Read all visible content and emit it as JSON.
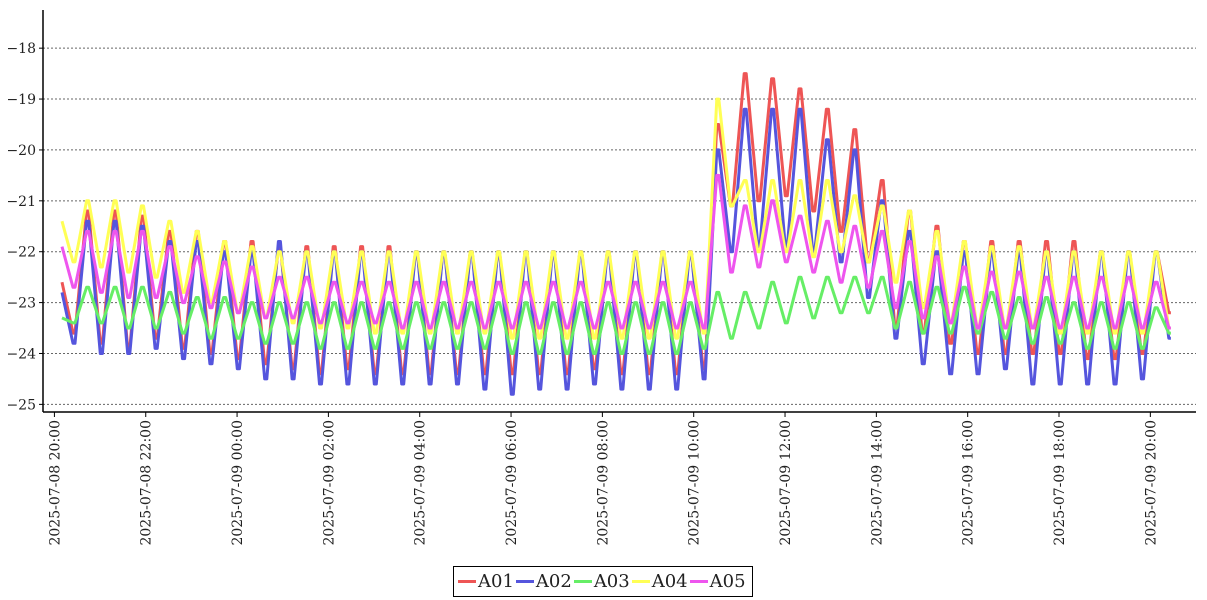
{
  "chart_data": {
    "type": "line",
    "title": "",
    "xlabel": "",
    "ylabel": "",
    "x_range": [
      "2025-07-08 19:45",
      "2025-07-09 21:00"
    ],
    "ylim": [
      -25.15,
      -17.25
    ],
    "y_ticks": [
      -18,
      -19,
      -20,
      -21,
      -22,
      -23,
      -24,
      -25
    ],
    "y_tick_labels": [
      "−18",
      "−19",
      "−20",
      "−21",
      "−22",
      "−23",
      "−24",
      "−25"
    ],
    "x_ticks": [
      "2025-07-08 20:00",
      "2025-07-08 22:00",
      "2025-07-09 00:00",
      "2025-07-09 02:00",
      "2025-07-09 04:00",
      "2025-07-09 06:00",
      "2025-07-09 08:00",
      "2025-07-09 10:00",
      "2025-07-09 12:00",
      "2025-07-09 14:00",
      "2025-07-09 16:00",
      "2025-07-09 18:00",
      "2025-07-09 20:00"
    ],
    "x_tick_labels": [
      "2025-07-08  20:00",
      "2025-07-08  22:00",
      "2025-07-09  00:00",
      "2025-07-09  02:00",
      "2025-07-09  04:00",
      "2025-07-09  06:00",
      "2025-07-09  08:00",
      "2025-07-09  10:00",
      "2025-07-09  12:00",
      "2025-07-09  14:00",
      "2025-07-09  16:00",
      "2025-07-09  18:00",
      "2025-07-09  20:00"
    ],
    "grid": "horizontal dashed",
    "legend_position": "bottom-center",
    "x_times": [
      "2025-07-08 20:10",
      "2025-07-08 20:27",
      "2025-07-08 20:45",
      "2025-07-08 21:03",
      "2025-07-08 21:21",
      "2025-07-08 21:39",
      "2025-07-08 21:57",
      "2025-07-08 22:15",
      "2025-07-08 22:33",
      "2025-07-08 22:51",
      "2025-07-08 23:09",
      "2025-07-08 23:27",
      "2025-07-08 23:45",
      "2025-07-09 00:03",
      "2025-07-09 00:21",
      "2025-07-09 00:39",
      "2025-07-09 00:57",
      "2025-07-09 01:15",
      "2025-07-09 01:33",
      "2025-07-09 01:51",
      "2025-07-09 02:09",
      "2025-07-09 02:27",
      "2025-07-09 02:45",
      "2025-07-09 03:03",
      "2025-07-09 03:21",
      "2025-07-09 03:39",
      "2025-07-09 03:57",
      "2025-07-09 04:15",
      "2025-07-09 04:33",
      "2025-07-09 04:51",
      "2025-07-09 05:09",
      "2025-07-09 05:27",
      "2025-07-09 05:45",
      "2025-07-09 06:03",
      "2025-07-09 06:21",
      "2025-07-09 06:39",
      "2025-07-09 06:57",
      "2025-07-09 07:15",
      "2025-07-09 07:33",
      "2025-07-09 07:51",
      "2025-07-09 08:09",
      "2025-07-09 08:27",
      "2025-07-09 08:45",
      "2025-07-09 09:03",
      "2025-07-09 09:21",
      "2025-07-09 09:39",
      "2025-07-09 09:57",
      "2025-07-09 10:15",
      "2025-07-09 10:33",
      "2025-07-09 10:51",
      "2025-07-09 11:09",
      "2025-07-09 11:27",
      "2025-07-09 11:45",
      "2025-07-09 12:03",
      "2025-07-09 12:21",
      "2025-07-09 12:39",
      "2025-07-09 12:57",
      "2025-07-09 13:15",
      "2025-07-09 13:33",
      "2025-07-09 13:51",
      "2025-07-09 14:09",
      "2025-07-09 14:27",
      "2025-07-09 14:45",
      "2025-07-09 15:03",
      "2025-07-09 15:21",
      "2025-07-09 15:39",
      "2025-07-09 15:57",
      "2025-07-09 16:15",
      "2025-07-09 16:33",
      "2025-07-09 16:51",
      "2025-07-09 17:09",
      "2025-07-09 17:27",
      "2025-07-09 17:45",
      "2025-07-09 18:03",
      "2025-07-09 18:21",
      "2025-07-09 18:39",
      "2025-07-09 18:57",
      "2025-07-09 19:15",
      "2025-07-09 19:33",
      "2025-07-09 19:51",
      "2025-07-09 20:09",
      "2025-07-09 20:27"
    ],
    "series": [
      {
        "name": "A01",
        "color": "#ee5555",
        "values": [
          -22.6,
          -23.6,
          -21.2,
          -23.8,
          -21.2,
          -23.9,
          -21.3,
          -23.7,
          -21.6,
          -23.9,
          -21.6,
          -24.0,
          -21.8,
          -24.1,
          -21.8,
          -24.2,
          -21.9,
          -24.3,
          -21.9,
          -24.4,
          -21.9,
          -24.3,
          -21.9,
          -24.4,
          -21.9,
          -24.4,
          -22.0,
          -24.4,
          -22.0,
          -24.4,
          -22.0,
          -24.4,
          -22.0,
          -24.4,
          -22.0,
          -24.4,
          -22.0,
          -24.4,
          -22.0,
          -24.3,
          -22.0,
          -24.4,
          -22.0,
          -24.4,
          -22.0,
          -24.4,
          -22.0,
          -24.3,
          -19.5,
          -21.1,
          -18.5,
          -21.0,
          -18.6,
          -20.9,
          -18.8,
          -21.2,
          -19.2,
          -21.6,
          -19.6,
          -22.2,
          -20.6,
          -23.5,
          -21.2,
          -23.6,
          -21.5,
          -23.8,
          -21.8,
          -24.0,
          -21.8,
          -24.0,
          -21.8,
          -24.0,
          -21.8,
          -24.0,
          -21.8,
          -24.1,
          -22.0,
          -24.1,
          -22.0,
          -24.0,
          -22.0,
          -23.2
        ]
      },
      {
        "name": "A02",
        "color": "#5555dd",
        "values": [
          -22.8,
          -23.8,
          -21.4,
          -24.0,
          -21.4,
          -24.0,
          -21.5,
          -23.9,
          -21.8,
          -24.1,
          -21.8,
          -24.2,
          -22.0,
          -24.3,
          -22.0,
          -24.5,
          -21.8,
          -24.5,
          -22.0,
          -24.6,
          -22.0,
          -24.6,
          -22.0,
          -24.6,
          -22.0,
          -24.6,
          -22.0,
          -24.6,
          -22.0,
          -24.6,
          -22.0,
          -24.7,
          -22.0,
          -24.8,
          -22.0,
          -24.7,
          -22.0,
          -24.7,
          -22.0,
          -24.6,
          -22.0,
          -24.7,
          -22.0,
          -24.7,
          -22.0,
          -24.7,
          -22.0,
          -24.5,
          -20.0,
          -22.0,
          -19.2,
          -21.9,
          -19.2,
          -21.9,
          -19.2,
          -22.0,
          -19.8,
          -22.2,
          -20.0,
          -22.9,
          -21.0,
          -23.7,
          -21.6,
          -24.2,
          -22.0,
          -24.4,
          -22.0,
          -24.4,
          -22.0,
          -24.3,
          -22.0,
          -24.6,
          -22.0,
          -24.6,
          -22.0,
          -24.6,
          -22.0,
          -24.6,
          -22.0,
          -24.5,
          -22.0,
          -23.7
        ]
      },
      {
        "name": "A03",
        "color": "#66ee66",
        "values": [
          -23.3,
          -23.4,
          -22.7,
          -23.4,
          -22.7,
          -23.5,
          -22.7,
          -23.5,
          -22.8,
          -23.6,
          -22.9,
          -23.7,
          -22.9,
          -23.7,
          -23.0,
          -23.8,
          -23.0,
          -23.8,
          -23.0,
          -23.9,
          -23.0,
          -23.9,
          -23.0,
          -23.9,
          -23.0,
          -23.9,
          -23.0,
          -23.9,
          -23.0,
          -23.9,
          -23.0,
          -23.9,
          -23.0,
          -24.0,
          -23.0,
          -24.0,
          -23.0,
          -24.0,
          -23.0,
          -24.0,
          -23.0,
          -24.0,
          -23.0,
          -24.0,
          -23.0,
          -24.0,
          -23.0,
          -23.9,
          -22.8,
          -23.7,
          -22.8,
          -23.5,
          -22.6,
          -23.4,
          -22.5,
          -23.3,
          -22.5,
          -23.2,
          -22.5,
          -23.2,
          -22.5,
          -23.5,
          -22.6,
          -23.6,
          -22.7,
          -23.6,
          -22.7,
          -23.6,
          -22.8,
          -23.7,
          -22.9,
          -23.8,
          -22.9,
          -23.8,
          -23.0,
          -23.9,
          -23.0,
          -23.9,
          -23.0,
          -23.9,
          -23.1,
          -23.6
        ]
      },
      {
        "name": "A04",
        "color": "#ffff55",
        "values": [
          -21.4,
          -22.2,
          -21.0,
          -22.3,
          -21.0,
          -22.4,
          -21.1,
          -22.5,
          -21.4,
          -22.8,
          -21.6,
          -23.0,
          -21.8,
          -23.2,
          -21.9,
          -23.3,
          -22.0,
          -23.4,
          -22.0,
          -23.5,
          -22.0,
          -23.5,
          -22.0,
          -23.6,
          -22.0,
          -23.6,
          -22.0,
          -23.6,
          -22.0,
          -23.6,
          -22.0,
          -23.6,
          -22.0,
          -23.7,
          -22.0,
          -23.7,
          -22.0,
          -23.7,
          -22.0,
          -23.7,
          -22.0,
          -23.7,
          -22.0,
          -23.7,
          -22.0,
          -23.7,
          -22.0,
          -23.6,
          -19.0,
          -21.1,
          -20.6,
          -22.0,
          -20.6,
          -22.0,
          -20.6,
          -22.1,
          -20.6,
          -22.0,
          -20.9,
          -22.2,
          -21.1,
          -22.6,
          -21.2,
          -23.1,
          -21.6,
          -23.4,
          -21.8,
          -23.5,
          -21.9,
          -23.5,
          -21.9,
          -23.5,
          -22.0,
          -23.6,
          -22.0,
          -23.6,
          -22.0,
          -23.6,
          -22.0,
          -23.6,
          -22.0,
          -23.5
        ]
      },
      {
        "name": "A05",
        "color": "#ee55ee",
        "values": [
          -21.9,
          -22.7,
          -21.6,
          -22.8,
          -21.6,
          -22.9,
          -21.6,
          -22.9,
          -21.9,
          -23.0,
          -22.1,
          -23.1,
          -22.2,
          -23.2,
          -22.3,
          -23.3,
          -22.5,
          -23.3,
          -22.5,
          -23.4,
          -22.6,
          -23.4,
          -22.6,
          -23.4,
          -22.6,
          -23.5,
          -22.6,
          -23.5,
          -22.6,
          -23.5,
          -22.6,
          -23.5,
          -22.6,
          -23.5,
          -22.6,
          -23.5,
          -22.6,
          -23.5,
          -22.6,
          -23.5,
          -22.6,
          -23.5,
          -22.6,
          -23.5,
          -22.6,
          -23.5,
          -22.6,
          -23.5,
          -20.5,
          -22.4,
          -21.1,
          -22.3,
          -21.0,
          -22.2,
          -21.3,
          -22.4,
          -21.4,
          -22.6,
          -21.5,
          -22.7,
          -21.6,
          -23.1,
          -21.8,
          -23.3,
          -22.1,
          -23.4,
          -22.3,
          -23.5,
          -22.4,
          -23.5,
          -22.4,
          -23.5,
          -22.5,
          -23.5,
          -22.5,
          -23.5,
          -22.5,
          -23.5,
          -22.5,
          -23.5,
          -22.6,
          -23.5
        ]
      }
    ]
  }
}
